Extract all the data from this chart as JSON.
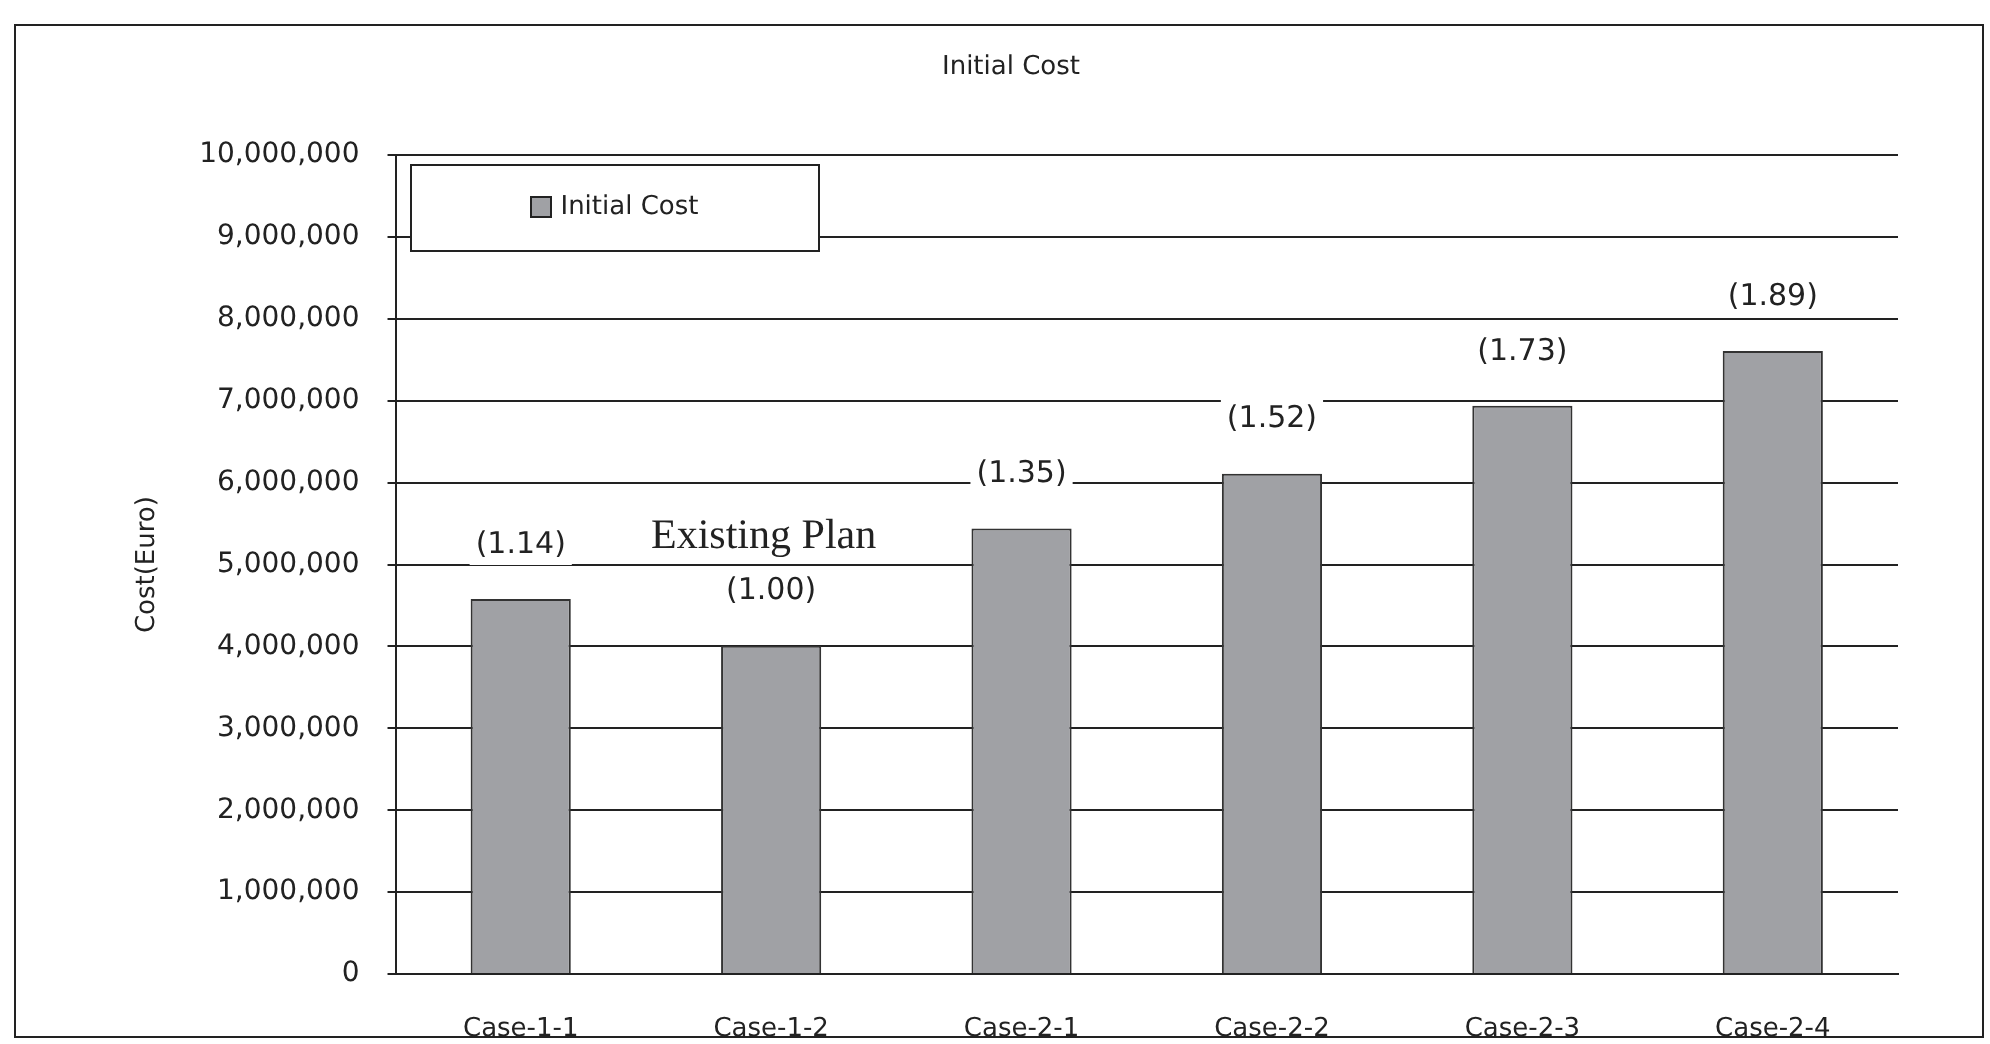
{
  "chart_data": {
    "type": "bar",
    "title": "Initial Cost",
    "ylabel": "Cost(Euro)",
    "categories": [
      "Case-1-1",
      "Case-1-2",
      "Case-2-1",
      "Case-2-2",
      "Case-2-3",
      "Case-2-4"
    ],
    "series": [
      {
        "name": "Initial Cost",
        "color": "#a0a1a5",
        "values": [
          4580000,
          4010000,
          5440000,
          6110000,
          6940000,
          7610000
        ]
      }
    ],
    "ylim": [
      0,
      10000000
    ],
    "yticks": [
      {
        "value": 0,
        "label": "0"
      },
      {
        "value": 1000000,
        "label": "1,000,000"
      },
      {
        "value": 2000000,
        "label": "2,000,000"
      },
      {
        "value": 3000000,
        "label": "3,000,000"
      },
      {
        "value": 4000000,
        "label": "4,000,000"
      },
      {
        "value": 5000000,
        "label": "5,000,000"
      },
      {
        "value": 6000000,
        "label": "6,000,000"
      },
      {
        "value": 7000000,
        "label": "7,000,000"
      },
      {
        "value": 8000000,
        "label": "8,000,000"
      },
      {
        "value": 9000000,
        "label": "9,000,000"
      },
      {
        "value": 10000000,
        "label": "10,000,000"
      }
    ],
    "grid": "y",
    "legend": "top left",
    "annotations": [
      "Existing Plan",
      {
        "text": "(1.14)",
        "x": "Case-1-1",
        "y": 4580000
      },
      {
        "text": "(1.00)",
        "x": "Case-1-2",
        "y": 4010000
      },
      {
        "text": "(1.35)",
        "x": "Case-2-1",
        "y": 5440000
      },
      {
        "text": "(1.52)",
        "x": "Case-2-2",
        "y": 6110000
      },
      {
        "text": "(1.73)",
        "x": "Case-2-3",
        "y": 6940000
      },
      {
        "text": "(1.89)",
        "x": "Case-2-4",
        "y": 7610000
      }
    ]
  }
}
